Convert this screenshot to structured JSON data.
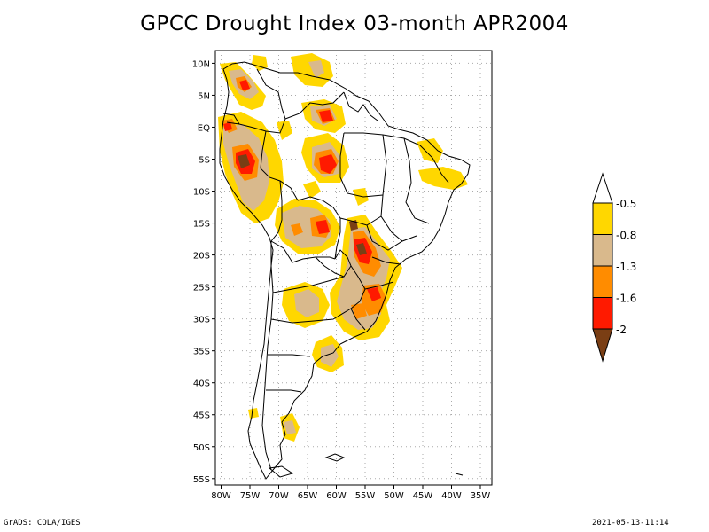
{
  "title": "GPCC Drought Index 03-month APR2004",
  "footer": {
    "left": "GrADS: COLA/IGES",
    "right": "2021-05-13-11:14"
  },
  "map": {
    "lat_ticks": [
      "10N",
      "5N",
      "EQ",
      "5S",
      "10S",
      "15S",
      "20S",
      "25S",
      "30S",
      "35S",
      "40S",
      "45S",
      "50S",
      "55S"
    ],
    "lon_ticks": [
      "80W",
      "75W",
      "70W",
      "65W",
      "60W",
      "55W",
      "50W",
      "45W",
      "40W",
      "35W"
    ],
    "lon_range": [
      -81,
      -33
    ],
    "lat_range": [
      -56,
      12
    ],
    "grid": true,
    "grid_style": "dotted"
  },
  "colors": {
    "yellow": "#ffd700",
    "tan": "#d9b98c",
    "orange": "#ff8c00",
    "red": "#ff1a00",
    "brown": "#7a3e14",
    "map_line": "#000000",
    "grid": "#aaaaaa"
  },
  "legend": {
    "labels": [
      "-0.5",
      "-0.8",
      "-1.3",
      "-1.6",
      "-2"
    ],
    "bins": [
      {
        "color": "#ffd700",
        "from": -0.8,
        "to": -0.5
      },
      {
        "color": "#d9b98c",
        "from": -1.3,
        "to": -0.8
      },
      {
        "color": "#ff8c00",
        "from": -1.6,
        "to": -1.3
      },
      {
        "color": "#ff1a00",
        "from": -2.0,
        "to": -1.6
      }
    ],
    "top_arrow_color": "#ffffff",
    "bottom_arrow_color": "#7a3e14"
  }
}
